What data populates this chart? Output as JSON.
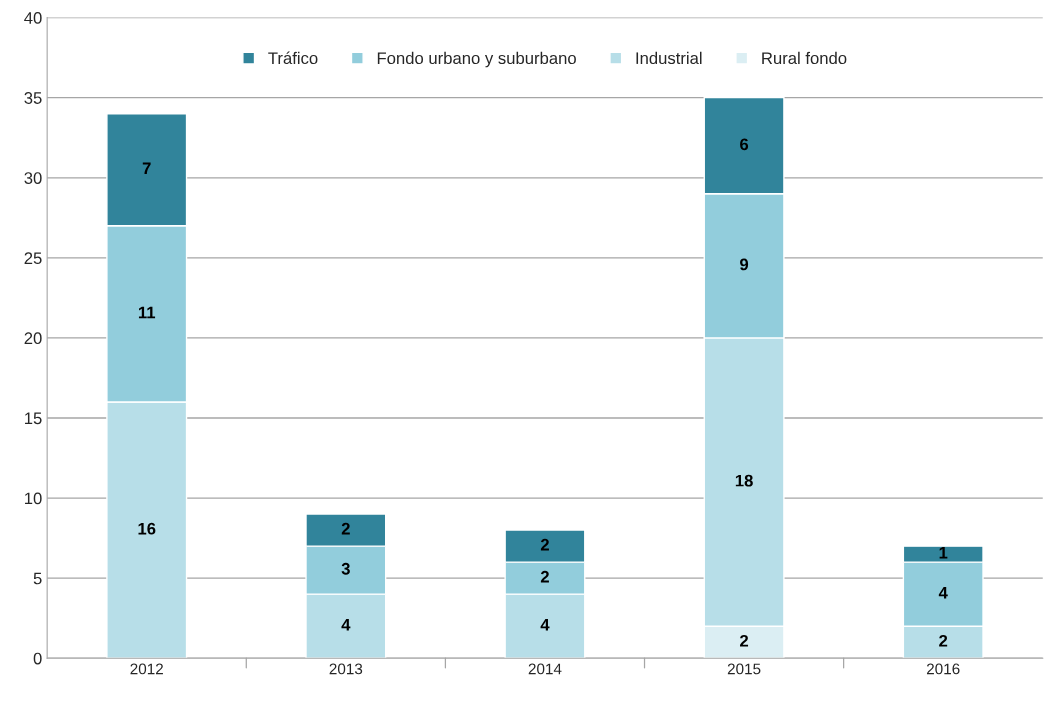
{
  "chart_data": {
    "type": "bar",
    "stacked": true,
    "categories": [
      "2012",
      "2013",
      "2014",
      "2015",
      "2016"
    ],
    "series": [
      {
        "name": "Rural fondo",
        "color": "#dbeef3",
        "values": [
          null,
          null,
          null,
          2,
          null
        ]
      },
      {
        "name": "Industrial",
        "color": "#b7dee8",
        "values": [
          16,
          4,
          4,
          18,
          2
        ]
      },
      {
        "name": "Fondo urbano y suburbano",
        "color": "#92cddc",
        "values": [
          11,
          3,
          2,
          9,
          4
        ]
      },
      {
        "name": "Tráfico",
        "color": "#31849b",
        "values": [
          7,
          2,
          2,
          6,
          1
        ]
      }
    ],
    "ylim": [
      0,
      40
    ],
    "yticks": [
      0,
      5,
      10,
      15,
      20,
      25,
      30,
      35,
      40
    ],
    "grid": "y",
    "legend": "top",
    "data_labels": true
  }
}
